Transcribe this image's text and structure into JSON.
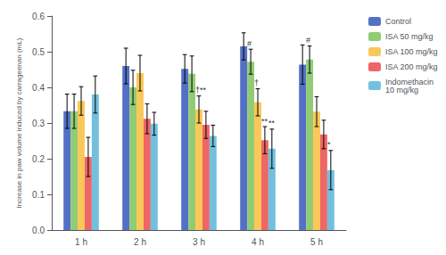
{
  "chart_data": {
    "type": "bar",
    "categories": [
      "1 h",
      "2 h",
      "3 h",
      "4 h",
      "5 h"
    ],
    "series": [
      {
        "name": "Control",
        "values": [
          0.333,
          0.46,
          0.452,
          0.515,
          0.464
        ],
        "errors": [
          0.048,
          0.05,
          0.04,
          0.038,
          0.055
        ]
      },
      {
        "name": "ISA 50 mg/kg",
        "values": [
          0.333,
          0.4,
          0.438,
          0.472,
          0.478
        ],
        "errors": [
          0.048,
          0.048,
          0.05,
          0.035,
          0.038
        ]
      },
      {
        "name": "ISA 100 mg/kg",
        "values": [
          0.362,
          0.44,
          0.338,
          0.358,
          0.332
        ],
        "errors": [
          0.04,
          0.05,
          0.038,
          0.038,
          0.042
        ]
      },
      {
        "name": "ISA 200 mg/kg",
        "values": [
          0.205,
          0.312,
          0.295,
          0.252,
          0.268
        ],
        "errors": [
          0.055,
          0.042,
          0.038,
          0.038,
          0.04
        ]
      },
      {
        "name": "Indomethacin\n10 mg/kg",
        "values": [
          0.38,
          0.298,
          0.264,
          0.228,
          0.168
        ],
        "errors": [
          0.052,
          0.032,
          0.03,
          0.055,
          0.055
        ]
      }
    ],
    "ylabel": "Increase in paw volume induced by carrageenan (mL)",
    "ylim": [
      0.0,
      0.6
    ],
    "yticks": [
      {
        "value": 0.0,
        "label": "0.0"
      },
      0.1,
      0.2,
      0.3,
      0.4,
      0.5,
      0.6
    ],
    "grid": false,
    "legend": "upper right",
    "annotations": [
      {
        "text": "†**",
        "category": "3 h",
        "series": "ISA 100 mg/kg"
      },
      {
        "text": "#",
        "category": "4 h",
        "series": "ISA 50 mg/kg"
      },
      {
        "text": "†",
        "category": "4 h",
        "series": "ISA 100 mg/kg"
      },
      {
        "text": "**",
        "category": "4 h",
        "series": "ISA 200 mg/kg"
      },
      {
        "text": "**",
        "category": "4 h",
        "series": "Indomethacin\n10 mg/kg"
      },
      {
        "text": "#",
        "category": "5 h",
        "series": "ISA 50 mg/kg"
      },
      {
        "text": "*",
        "category": "5 h",
        "series": "Indomethacin\n10 mg/kg"
      }
    ]
  }
}
